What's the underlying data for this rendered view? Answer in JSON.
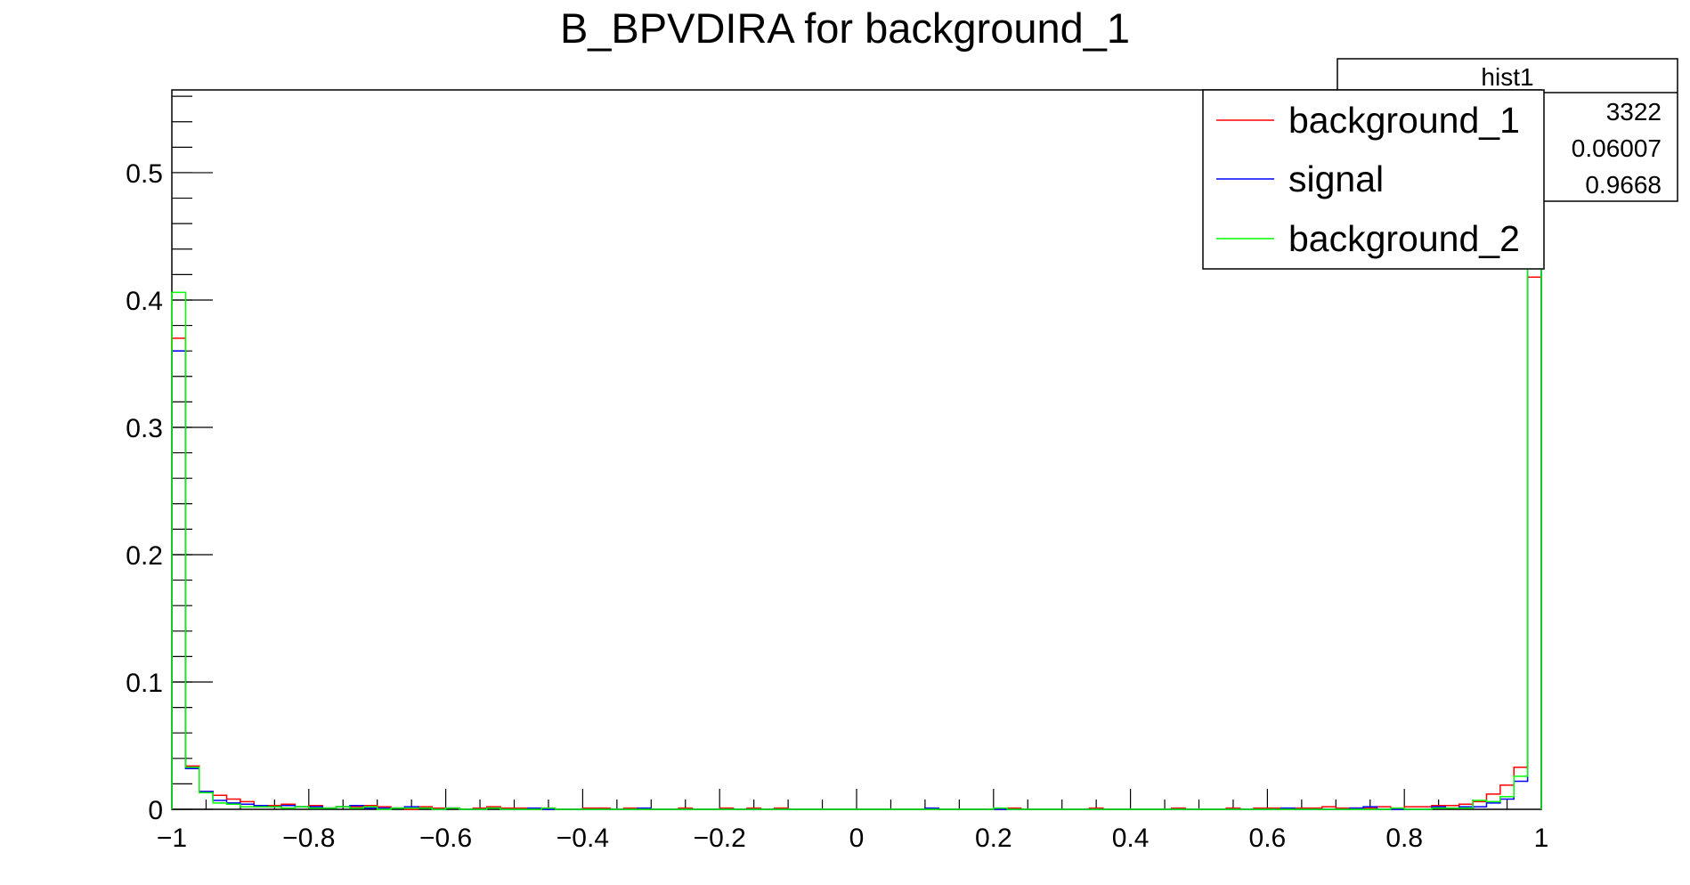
{
  "colors": {
    "background_1": "#ff0000",
    "signal": "#0000ff",
    "background_2": "#00ff00",
    "axis": "#000000",
    "background": "#ffffff"
  },
  "chart_data": {
    "type": "histogram",
    "title": "B_BPVDIRA for background_1",
    "xlabel": "",
    "ylabel": "",
    "xlim": [
      -1,
      1
    ],
    "ylim": [
      0,
      0.565
    ],
    "grid": false,
    "x_ticks": [
      {
        "value": -1,
        "label": "−1"
      },
      {
        "value": -0.8,
        "label": "−0.8"
      },
      {
        "value": -0.6,
        "label": "−0.6"
      },
      {
        "value": -0.4,
        "label": "−0.4"
      },
      {
        "value": -0.2,
        "label": "−0.2"
      },
      {
        "value": 0,
        "label": "0"
      },
      {
        "value": 0.2,
        "label": "0.2"
      },
      {
        "value": 0.4,
        "label": "0.4"
      },
      {
        "value": 0.6,
        "label": "0.6"
      },
      {
        "value": 0.8,
        "label": "0.8"
      },
      {
        "value": 1,
        "label": "1"
      }
    ],
    "y_ticks": [
      {
        "value": 0,
        "label": "0"
      },
      {
        "value": 0.1,
        "label": "0.1"
      },
      {
        "value": 0.2,
        "label": "0.2"
      },
      {
        "value": 0.3,
        "label": "0.3"
      },
      {
        "value": 0.4,
        "label": "0.4"
      },
      {
        "value": 0.5,
        "label": "0.5"
      }
    ],
    "bins": {
      "count": 100,
      "min": -1,
      "max": 1
    },
    "series": [
      {
        "name": "background_1",
        "color": "#ff0000",
        "values": [
          0.37,
          0.034,
          0.014,
          0.011,
          0.008,
          0.006,
          0.002,
          0.003,
          0.004,
          0.002,
          0.003,
          0.001,
          0.002,
          0.002,
          0.003,
          0.002,
          0.001,
          0.0,
          0.002,
          0.001,
          0.001,
          0.0,
          0.001,
          0.002,
          0.001,
          0.001,
          0.0,
          0.001,
          0.0,
          0.0,
          0.001,
          0.001,
          0.0,
          0.001,
          0.0,
          0.0,
          0.0,
          0.001,
          0.0,
          0.0,
          0.001,
          0.0,
          0.001,
          0.0,
          0.001,
          0.0,
          0.0,
          0.0,
          0.0,
          0.0,
          0.0,
          0.0,
          0.0,
          0.0,
          0.0,
          0.0,
          0.0,
          0.0,
          0.0,
          0.0,
          0.0,
          0.001,
          0.0,
          0.0,
          0.0,
          0.0,
          0.0,
          0.001,
          0.0,
          0.0,
          0.0,
          0.0,
          0.0,
          0.001,
          0.0,
          0.0,
          0.0,
          0.001,
          0.0,
          0.001,
          0.001,
          0.0,
          0.001,
          0.001,
          0.002,
          0.001,
          0.001,
          0.001,
          0.002,
          0.001,
          0.002,
          0.002,
          0.003,
          0.003,
          0.004,
          0.006,
          0.012,
          0.019,
          0.033,
          0.418
        ]
      },
      {
        "name": "signal",
        "color": "#0000ff",
        "values": [
          0.36,
          0.032,
          0.014,
          0.007,
          0.005,
          0.004,
          0.003,
          0.002,
          0.003,
          0.002,
          0.002,
          0.001,
          0.002,
          0.003,
          0.001,
          0.001,
          0.001,
          0.002,
          0.001,
          0.0,
          0.001,
          0.0,
          0.0,
          0.001,
          0.0,
          0.0,
          0.001,
          0.0,
          0.0,
          0.0,
          0.0,
          0.0,
          0.0,
          0.0,
          0.001,
          0.0,
          0.0,
          0.0,
          0.0,
          0.0,
          0.0,
          0.0,
          0.0,
          0.0,
          0.0,
          0.0,
          0.0,
          0.0,
          0.0,
          0.0,
          0.0,
          0.0,
          0.0,
          0.0,
          0.0,
          0.001,
          0.0,
          0.0,
          0.0,
          0.0,
          0.0,
          0.0,
          0.0,
          0.0,
          0.0,
          0.0,
          0.0,
          0.0,
          0.0,
          0.0,
          0.0,
          0.0,
          0.0,
          0.0,
          0.0,
          0.0,
          0.0,
          0.0,
          0.0,
          0.0,
          0.0,
          0.001,
          0.0,
          0.0,
          0.0,
          0.0,
          0.001,
          0.002,
          0.0,
          0.0,
          0.0,
          0.0,
          0.002,
          0.001,
          0.002,
          0.002,
          0.005,
          0.008,
          0.022,
          0.43
        ]
      },
      {
        "name": "background_2",
        "color": "#00ff00",
        "values": [
          0.406,
          0.033,
          0.013,
          0.005,
          0.004,
          0.002,
          0.002,
          0.002,
          0.001,
          0.002,
          0.001,
          0.001,
          0.002,
          0.001,
          0.002,
          0.0,
          0.001,
          0.001,
          0.001,
          0.0,
          0.001,
          0.0,
          0.0,
          0.001,
          0.0,
          0.0,
          0.0,
          0.001,
          0.0,
          0.0,
          0.0,
          0.0,
          0.0,
          0.0,
          0.0,
          0.0,
          0.0,
          0.0,
          0.0,
          0.0,
          0.0,
          0.0,
          0.0,
          0.0,
          0.0,
          0.0,
          0.0,
          0.0,
          0.0,
          0.0,
          0.0,
          0.0,
          0.0,
          0.0,
          0.0,
          0.0,
          0.0,
          0.0,
          0.0,
          0.0,
          0.001,
          0.0,
          0.0,
          0.0,
          0.0,
          0.0,
          0.0,
          0.0,
          0.0,
          0.0,
          0.0,
          0.0,
          0.0,
          0.0,
          0.0,
          0.0,
          0.0,
          0.0,
          0.0,
          0.0,
          0.0,
          0.0,
          0.0,
          0.0,
          0.0,
          0.0,
          0.0,
          0.0,
          0.0,
          0.001,
          0.0,
          0.0,
          0.001,
          0.001,
          0.001,
          0.007,
          0.006,
          0.01,
          0.026,
          0.425
        ]
      }
    ],
    "legend": {
      "placement": "top-right",
      "entries": [
        {
          "label": "background_1",
          "color": "#ff0000"
        },
        {
          "label": "signal",
          "color": "#0000ff"
        },
        {
          "label": "background_2",
          "color": "#00ff00"
        }
      ]
    },
    "stats_box": {
      "title": "hist1",
      "visible_values": [
        "3322",
        "0.06007",
        "0.9668"
      ]
    }
  }
}
